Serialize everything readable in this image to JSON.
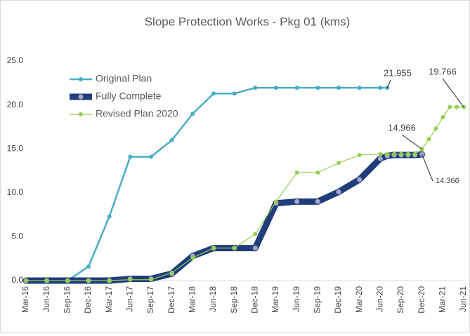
{
  "chart_data": {
    "type": "line",
    "title": "Slope Protection Works - Pkg 01 (kms)",
    "categories": [
      "Mar-16",
      null,
      null,
      "Jun-16",
      null,
      null,
      "Sep-16",
      null,
      null,
      "Dec-16",
      null,
      null,
      "Mar-17",
      null,
      null,
      "Jun-17",
      null,
      null,
      "Sep-17",
      null,
      null,
      "Dec-17",
      null,
      null,
      "Mar-18",
      null,
      null,
      "Jun-18",
      null,
      null,
      "Sep-18",
      null,
      null,
      "Dec-18",
      null,
      null,
      "Mar-19",
      null,
      null,
      "Jun-19",
      null,
      null,
      "Sep-19",
      null,
      null,
      "Dec-19",
      null,
      null,
      "Mar-20",
      null,
      null,
      "Jun-20",
      null,
      null,
      "Sep-20",
      null,
      null,
      "Dec-20",
      null,
      null,
      "Mar-21",
      null,
      null,
      "Jun-21"
    ],
    "series": [
      {
        "name": "Original Plan",
        "color": "#4bacc6",
        "values": [
          0,
          null,
          null,
          0,
          null,
          null,
          0,
          null,
          null,
          1.6,
          null,
          null,
          7.3,
          null,
          null,
          14.1,
          null,
          null,
          14.1,
          null,
          null,
          16,
          null,
          null,
          19,
          null,
          null,
          21.3,
          null,
          null,
          21.3,
          null,
          null,
          21.955,
          null,
          null,
          21.955,
          null,
          null,
          21.955,
          null,
          null,
          21.955,
          null,
          null,
          21.955,
          null,
          null,
          21.955,
          null,
          null,
          21.955,
          21.955,
          null,
          null,
          null,
          null,
          null,
          null,
          null,
          null,
          null,
          null,
          null
        ]
      },
      {
        "name": "Fully Complete",
        "color": "#1f3d7a",
        "values": [
          0,
          null,
          null,
          0,
          null,
          null,
          0,
          null,
          null,
          0,
          null,
          null,
          0,
          null,
          null,
          0.2,
          null,
          null,
          0.2,
          null,
          null,
          0.8,
          null,
          null,
          2.8,
          null,
          null,
          3.7,
          null,
          null,
          3.7,
          null,
          null,
          3.7,
          null,
          null,
          8.8,
          null,
          null,
          9,
          null,
          null,
          9,
          null,
          null,
          10.1,
          null,
          null,
          11.5,
          null,
          null,
          13.9,
          14.2,
          14.3,
          14.3,
          14.3,
          14.3,
          14.366,
          null,
          null,
          null,
          null,
          null,
          null
        ]
      },
      {
        "name": "Revised Plan 2020",
        "color": "#92d050",
        "values": [
          0,
          null,
          null,
          0,
          null,
          null,
          0,
          null,
          null,
          0,
          null,
          null,
          0,
          null,
          null,
          0.1,
          null,
          null,
          0.1,
          null,
          null,
          0.9,
          null,
          null,
          2.6,
          null,
          null,
          3.7,
          null,
          null,
          3.7,
          null,
          null,
          5.3,
          null,
          null,
          9,
          null,
          null,
          12.3,
          null,
          null,
          12.3,
          null,
          null,
          13.4,
          null,
          null,
          14.3,
          null,
          null,
          14.4,
          14.4,
          14.4,
          14.4,
          14.4,
          14.4,
          14.966,
          16.1,
          17.3,
          18.6,
          19.766,
          19.766,
          19.766
        ]
      }
    ],
    "ylim": [
      0,
      25
    ],
    "yticks": [
      {
        "value": 0,
        "label": "0.0"
      },
      {
        "value": 5,
        "label": "5.0"
      },
      {
        "value": 10,
        "label": "10.0"
      },
      {
        "value": 15,
        "label": "15.0"
      },
      {
        "value": 20,
        "label": "20.0"
      },
      {
        "value": 25,
        "label": "25.0"
      }
    ],
    "grid": false,
    "legend": "upper left"
  }
}
